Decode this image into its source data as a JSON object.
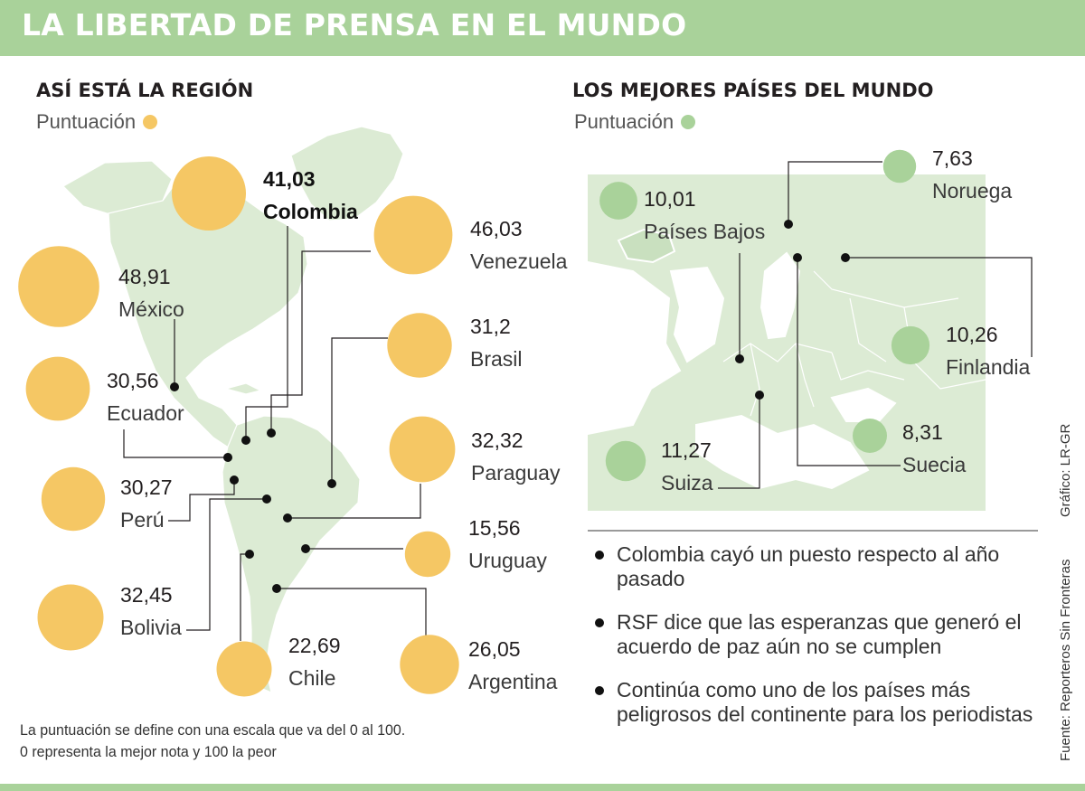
{
  "header": {
    "title": "LA LIBERTAD DE PRENSA EN EL MUNDO"
  },
  "colors": {
    "header_bg": "#a9d29a",
    "region_bubble": "#f5c764",
    "world_bubble": "#a9d29a",
    "map_fill": "#dcebd4"
  },
  "region": {
    "title": "ASÍ ESTÁ LA REGIÓN",
    "legend_label": "Puntuación"
  },
  "world": {
    "title": "LOS MEJORES PAÍSES DEL MUNDO",
    "legend_label": "Puntuación"
  },
  "chart_data": [
    {
      "type": "bubble",
      "title": "ASÍ ESTÁ LA REGIÓN",
      "legend": "Puntuación",
      "categories": [
        "Colombia",
        "Venezuela",
        "México",
        "Brasil",
        "Ecuador",
        "Paraguay",
        "Perú",
        "Uruguay",
        "Bolivia",
        "Chile",
        "Argentina"
      ],
      "values": [
        "41,03",
        "46,03",
        "48,91",
        "31,2",
        "30,56",
        "32,32",
        "30,27",
        "15,56",
        "32,45",
        "22,69",
        "26,05"
      ],
      "numeric_values": [
        41.03,
        46.03,
        48.91,
        31.2,
        30.56,
        32.32,
        30.27,
        15.56,
        32.45,
        22.69,
        26.05
      ],
      "highlight": "Colombia"
    },
    {
      "type": "bubble",
      "title": "LOS MEJORES PAÍSES DEL MUNDO",
      "legend": "Puntuación",
      "categories": [
        "Noruega",
        "Países Bajos",
        "Finlandia",
        "Suecia",
        "Suiza"
      ],
      "values": [
        "7,63",
        "10,01",
        "10,26",
        "8,31",
        "11,27"
      ],
      "numeric_values": [
        7.63,
        10.01,
        10.26,
        8.31,
        11.27
      ]
    }
  ],
  "notes": [
    "Colombia cayó un puesto respecto al año pasado",
    "RSF dice que las esperanzas que generó el acuerdo de paz aún no se cumplen",
    "Continúa como uno de los países más peligrosos del continente para los periodistas"
  ],
  "footnote": "La puntuación se define con una escala que va del 0 al 100. 0 representa la mejor nota y 100 la peor",
  "credit_graphic": "Gráfico: LR-GR",
  "credit_source": "Fuente: Reporteros Sin Fronteras"
}
